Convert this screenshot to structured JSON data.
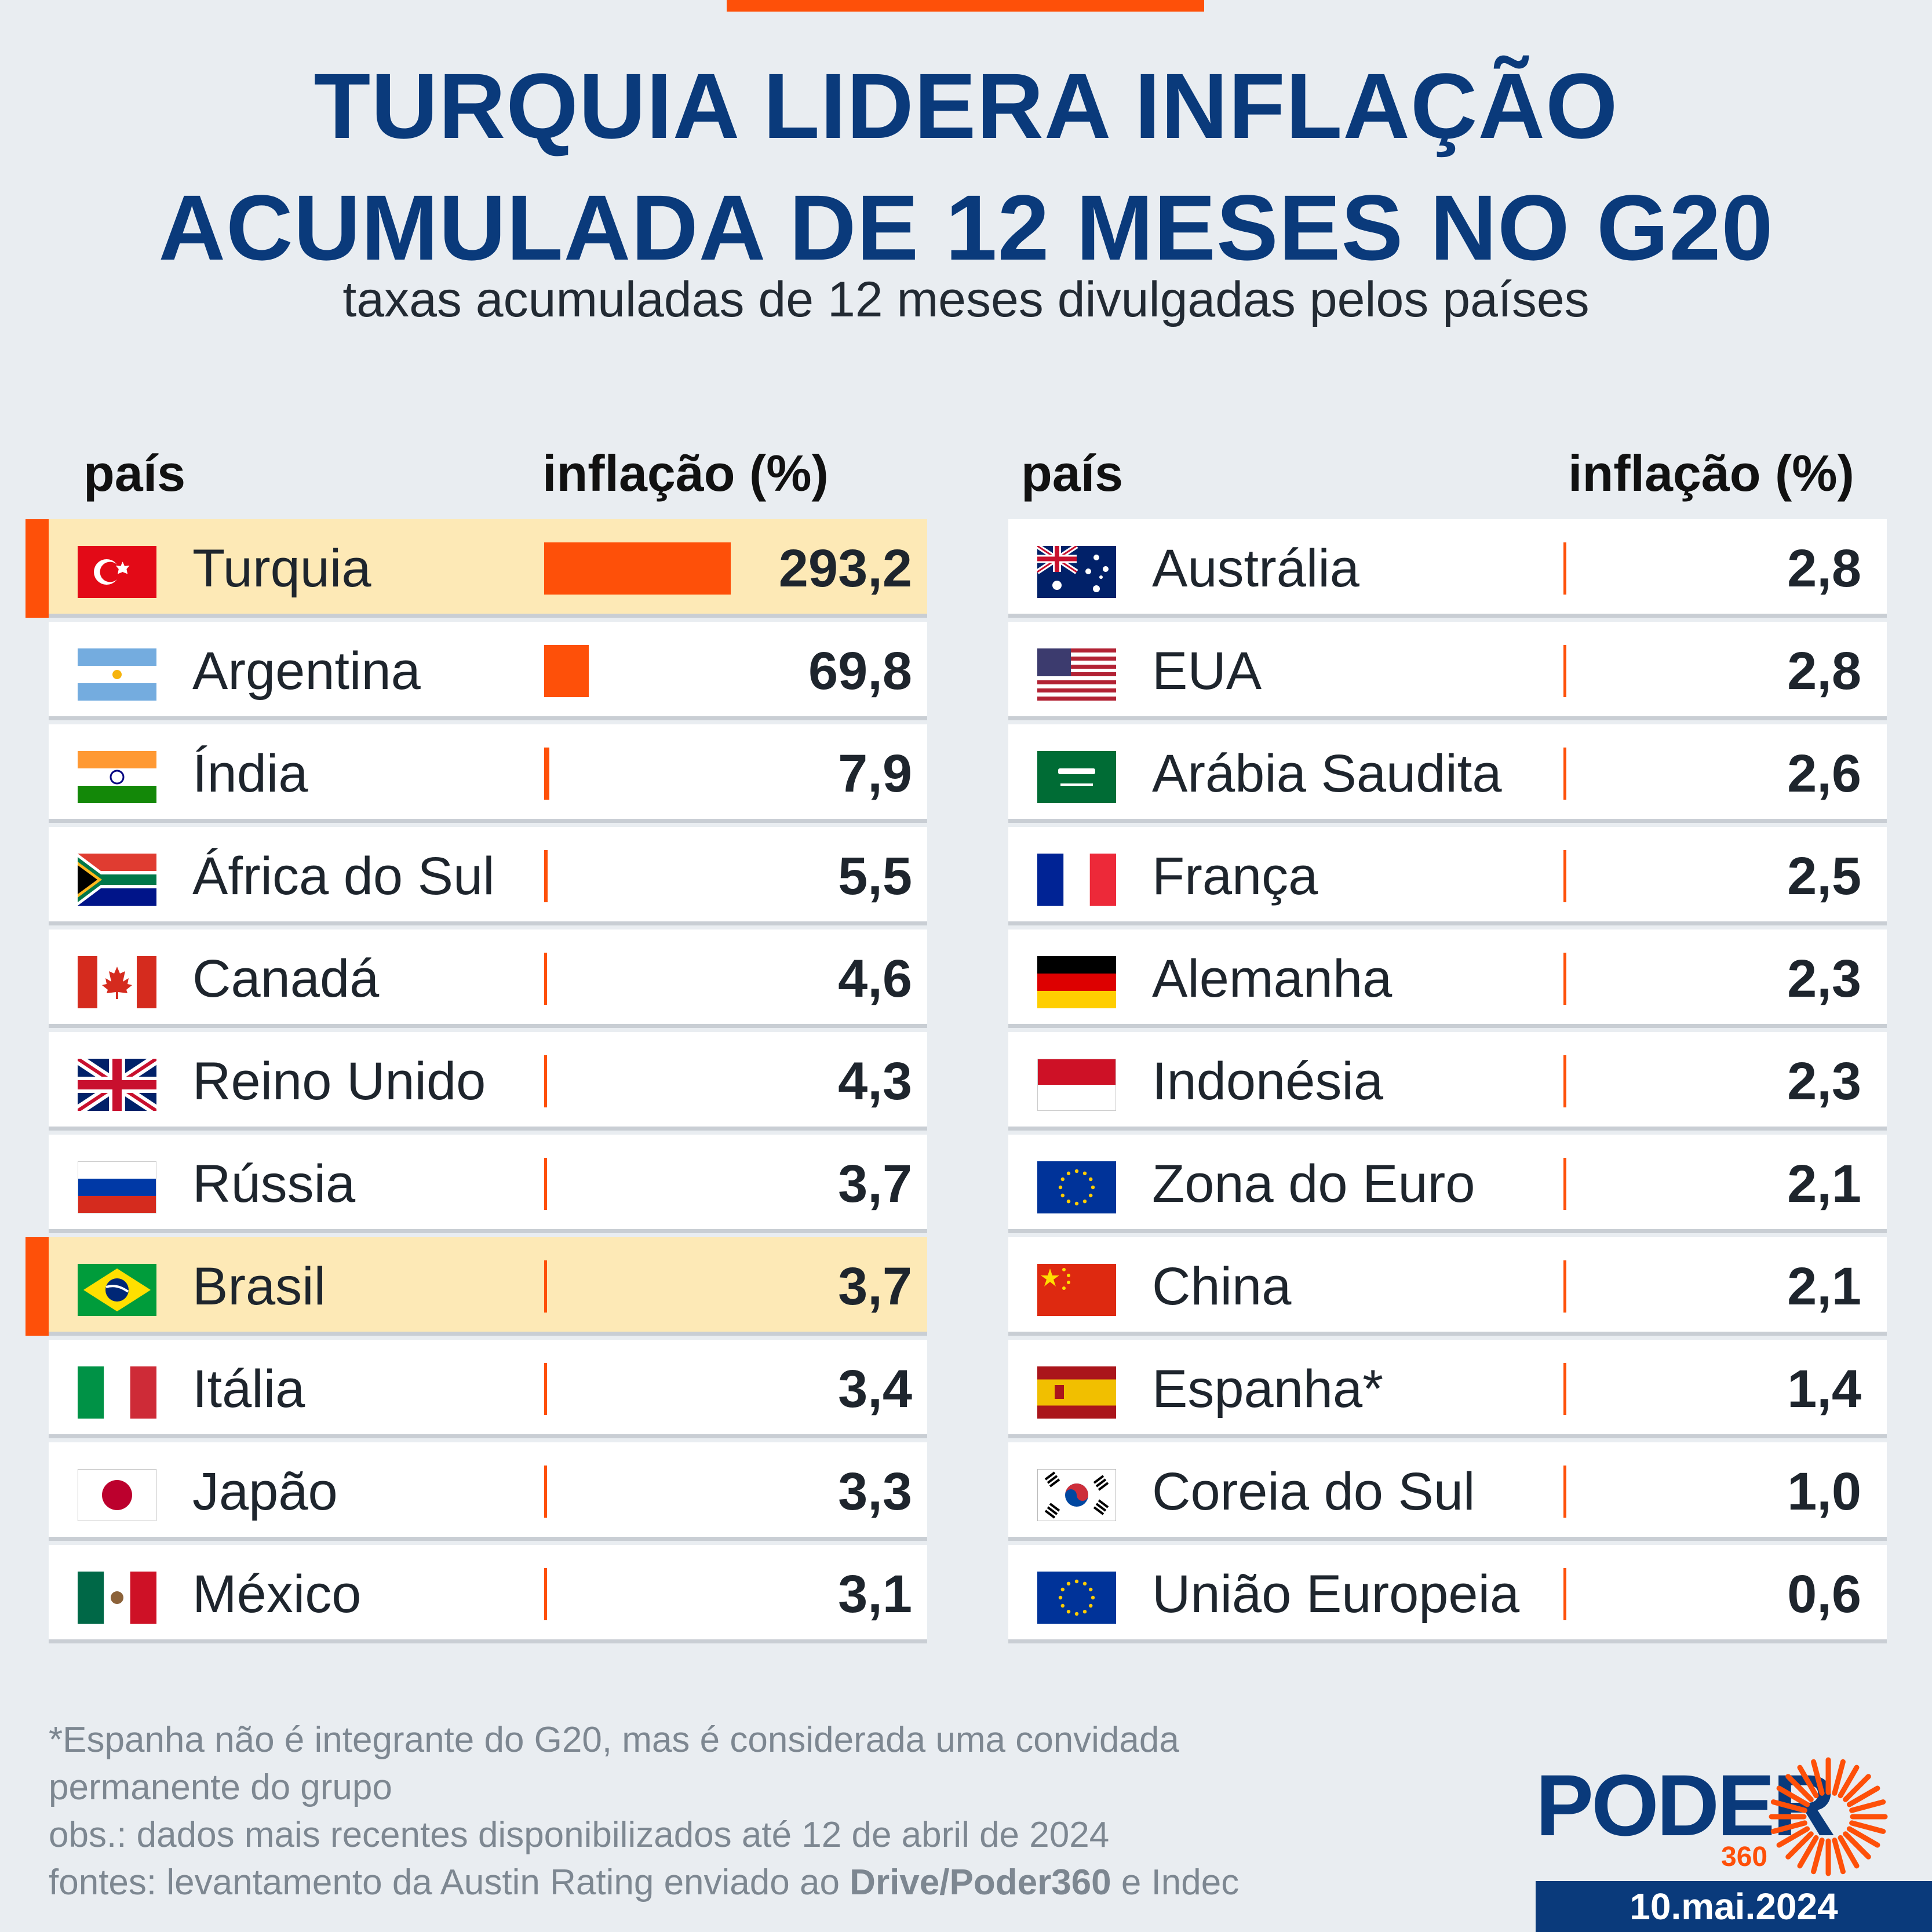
{
  "header": {
    "title_line1": "TURQUIA LIDERA INFLAÇÃO",
    "title_line2": "ACUMULADA DE 12 MESES NO G20",
    "subtitle": "taxas acumuladas de 12 meses divulgadas pelos países"
  },
  "colors": {
    "accent": "#fe5009",
    "brand": "#0a3a7b",
    "highlight": "#fde9b6"
  },
  "chart_data": {
    "type": "bar",
    "title": "TURQUIA LIDERA INFLAÇÃO ACUMULADA DE 12 MESES NO G20",
    "subtitle": "taxas acumuladas de 12 meses divulgadas pelos países",
    "xlabel": "país",
    "ylabel": "inflação (%)",
    "left_table": {
      "col_country": "país",
      "col_value": "inflação (%)",
      "rows": [
        {
          "country": "Turquia",
          "value": 293.2,
          "label": "293,2",
          "flag": "turkey-flag",
          "highlight": true
        },
        {
          "country": "Argentina",
          "value": 69.8,
          "label": "69,8",
          "flag": "argentina-flag"
        },
        {
          "country": "Índia",
          "value": 7.9,
          "label": "7,9",
          "flag": "india-flag"
        },
        {
          "country": "África do Sul",
          "value": 5.5,
          "label": "5,5",
          "flag": "south-africa-flag"
        },
        {
          "country": "Canadá",
          "value": 4.6,
          "label": "4,6",
          "flag": "canada-flag"
        },
        {
          "country": "Reino Unido",
          "value": 4.3,
          "label": "4,3",
          "flag": "uk-flag"
        },
        {
          "country": "Rússia",
          "value": 3.7,
          "label": "3,7",
          "flag": "russia-flag"
        },
        {
          "country": "Brasil",
          "value": 3.7,
          "label": "3,7",
          "flag": "brazil-flag",
          "highlight": true
        },
        {
          "country": "Itália",
          "value": 3.4,
          "label": "3,4",
          "flag": "italy-flag"
        },
        {
          "country": "Japão",
          "value": 3.3,
          "label": "3,3",
          "flag": "japan-flag"
        },
        {
          "country": "México",
          "value": 3.1,
          "label": "3,1",
          "flag": "mexico-flag"
        }
      ]
    },
    "right_table": {
      "col_country": "país",
      "col_value": "inflação (%)",
      "rows": [
        {
          "country": "Austrália",
          "value": 2.8,
          "label": "2,8",
          "flag": "australia-flag"
        },
        {
          "country": "EUA",
          "value": 2.8,
          "label": "2,8",
          "flag": "usa-flag"
        },
        {
          "country": "Arábia Saudita",
          "value": 2.6,
          "label": "2,6",
          "flag": "saudi-arabia-flag"
        },
        {
          "country": "França",
          "value": 2.5,
          "label": "2,5",
          "flag": "france-flag"
        },
        {
          "country": "Alemanha",
          "value": 2.3,
          "label": "2,3",
          "flag": "germany-flag"
        },
        {
          "country": "Indonésia",
          "value": 2.3,
          "label": "2,3",
          "flag": "indonesia-flag"
        },
        {
          "country": "Zona do Euro",
          "value": 2.1,
          "label": "2,1",
          "flag": "eu-flag"
        },
        {
          "country": "China",
          "value": 2.1,
          "label": "2,1",
          "flag": "china-flag"
        },
        {
          "country": "Espanha*",
          "value": 1.4,
          "label": "1,4",
          "flag": "spain-flag"
        },
        {
          "country": "Coreia do Sul",
          "value": 1.0,
          "label": "1,0",
          "flag": "south-korea-flag"
        },
        {
          "country": "União Europeia",
          "value": 0.6,
          "label": "0,6",
          "flag": "eu-flag"
        }
      ]
    },
    "ylim": [
      0,
      293.2
    ]
  },
  "footnote": {
    "line1": "*Espanha não é integrante do G20, mas é considerada uma convidada",
    "line2": "permanente do grupo",
    "line3": "obs.: dados mais recentes disponibilizados até 12 de abril de 2024",
    "line4_prefix": "fontes: levantamento da Austin Rating enviado ao ",
    "line4_bold": "Drive/Poder360",
    "line4_suffix": " e Indec"
  },
  "logo": {
    "word": "PODER",
    "number": "360"
  },
  "date": "10.mai.2024"
}
